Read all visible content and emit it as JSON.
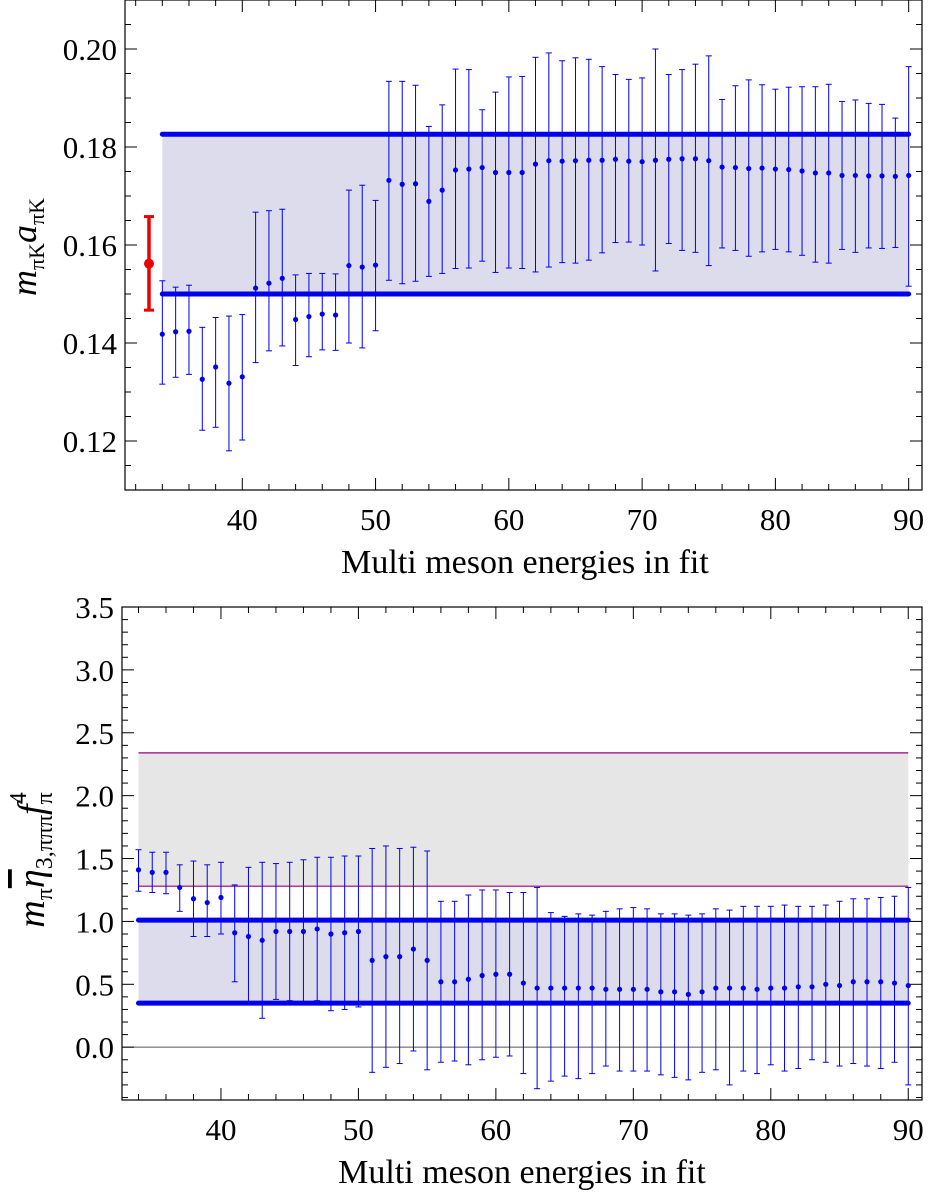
{
  "chart_data": [
    {
      "type": "scatter",
      "xlabel": "Multi meson energies in fit",
      "ylabel": "mπK aπK",
      "ylabel_parts": {
        "m": "m",
        "m_sub": "πK",
        "a": "a",
        "a_sub": "πK"
      },
      "xlim": [
        31.2,
        91
      ],
      "ylim": [
        0.11,
        0.21
      ],
      "x_ticks": [
        40,
        50,
        60,
        70,
        80,
        90
      ],
      "x_ticklabels": [
        "40",
        "50",
        "60",
        "70",
        "80",
        "90"
      ],
      "y_ticks": [
        0.12,
        0.14,
        0.16,
        0.18,
        0.2
      ],
      "y_ticklabels": [
        "0.12",
        "0.14",
        "0.16",
        "0.18",
        "0.20"
      ],
      "colors": {
        "points": "#0000ee",
        "band_fill": "#dcdcec",
        "band_line": "#0000ee",
        "reference": "#ee0000"
      },
      "band": {
        "x": [
          34,
          90
        ],
        "low": 0.15,
        "high": 0.1826
      },
      "reference_point": {
        "x": 33,
        "y": 0.1562,
        "err_low": 0.1467,
        "err_high": 0.1658
      },
      "x": [
        34,
        35,
        36,
        37,
        38,
        39,
        40,
        41,
        42,
        43,
        44,
        45,
        46,
        47,
        48,
        49,
        50,
        51,
        52,
        53,
        54,
        55,
        56,
        57,
        58,
        59,
        60,
        61,
        62,
        63,
        64,
        65,
        66,
        67,
        68,
        69,
        70,
        71,
        72,
        73,
        74,
        75,
        76,
        77,
        78,
        79,
        80,
        81,
        82,
        83,
        84,
        85,
        86,
        87,
        88,
        89,
        90
      ],
      "y": [
        0.1418,
        0.1423,
        0.1424,
        0.1326,
        0.1351,
        0.1318,
        0.1331,
        0.1512,
        0.1522,
        0.1532,
        0.1448,
        0.1454,
        0.1459,
        0.1457,
        0.1558,
        0.1555,
        0.1559,
        0.1732,
        0.1724,
        0.1725,
        0.1689,
        0.1712,
        0.1753,
        0.1755,
        0.1758,
        0.1748,
        0.1748,
        0.1748,
        0.1765,
        0.1772,
        0.1771,
        0.1772,
        0.1773,
        0.1773,
        0.1775,
        0.1771,
        0.177,
        0.1773,
        0.1775,
        0.1776,
        0.1776,
        0.1772,
        0.1759,
        0.1758,
        0.1756,
        0.1757,
        0.1755,
        0.1754,
        0.1751,
        0.1747,
        0.1747,
        0.1742,
        0.1742,
        0.1741,
        0.1741,
        0.174,
        0.1742
      ],
      "err_low": [
        0.1316,
        0.133,
        0.1336,
        0.1222,
        0.1228,
        0.118,
        0.1202,
        0.136,
        0.1384,
        0.1394,
        0.1354,
        0.1372,
        0.1386,
        0.1385,
        0.14,
        0.139,
        0.1425,
        0.1528,
        0.1521,
        0.1526,
        0.1536,
        0.1542,
        0.1552,
        0.1553,
        0.1567,
        0.1544,
        0.1553,
        0.1552,
        0.1545,
        0.1555,
        0.1564,
        0.1563,
        0.1569,
        0.1584,
        0.1605,
        0.1606,
        0.16,
        0.1547,
        0.1603,
        0.1589,
        0.1585,
        0.1558,
        0.1594,
        0.1589,
        0.1577,
        0.1586,
        0.1591,
        0.1586,
        0.1579,
        0.1565,
        0.1563,
        0.1591,
        0.1585,
        0.1594,
        0.1593,
        0.1595,
        0.1516
      ],
      "err_high": [
        0.1527,
        0.1514,
        0.1518,
        0.1432,
        0.1452,
        0.1455,
        0.1458,
        0.1667,
        0.167,
        0.1673,
        0.1539,
        0.1542,
        0.1542,
        0.1541,
        0.1712,
        0.1722,
        0.1691,
        0.1934,
        0.1934,
        0.1926,
        0.1842,
        0.1886,
        0.1959,
        0.1958,
        0.1876,
        0.1912,
        0.1943,
        0.1944,
        0.1983,
        0.1992,
        0.1976,
        0.1982,
        0.1979,
        0.1964,
        0.1948,
        0.1938,
        0.1941,
        0.2,
        0.1948,
        0.1958,
        0.1969,
        0.1986,
        0.1897,
        0.1925,
        0.1937,
        0.1927,
        0.1918,
        0.1922,
        0.1923,
        0.1923,
        0.1928,
        0.1893,
        0.1896,
        0.1889,
        0.1887,
        0.1859,
        0.1964
      ]
    },
    {
      "type": "scatter",
      "xlabel": "Multi meson energies in fit",
      "ylabel": "mπ η̄3,πππ fπ4",
      "ylabel_parts": {
        "m": "m",
        "m_sub": "π",
        "eta": "η",
        "eta_sub": "3,πππ",
        "f": "f",
        "f_sub": "π",
        "f_sup": "4"
      },
      "xlim": [
        32.8,
        91
      ],
      "ylim": [
        -0.42,
        3.5
      ],
      "x_ticks": [
        40,
        50,
        60,
        70,
        80,
        90
      ],
      "x_ticklabels": [
        "40",
        "50",
        "60",
        "70",
        "80",
        "90"
      ],
      "y_ticks": [
        0.0,
        0.5,
        1.0,
        1.5,
        2.0,
        2.5,
        3.0,
        3.5
      ],
      "y_ticklabels": [
        "0.0",
        "0.5",
        "1.0",
        "1.5",
        "2.0",
        "2.5",
        "3.0",
        "3.5"
      ],
      "zero_line": 0,
      "colors": {
        "points": "#0000ee",
        "band_fill": "#dcdcec",
        "band_line": "#0000ee",
        "outer_band_fill": "#e6e6e6",
        "outer_band_line": "#990077",
        "zero_line": "#555555"
      },
      "band": {
        "x": [
          34,
          90
        ],
        "low": 0.35,
        "high": 1.01
      },
      "outer_band": {
        "x": [
          34,
          90
        ],
        "low": 1.28,
        "high": 2.34
      },
      "x": [
        34,
        35,
        36,
        37,
        38,
        39,
        40,
        41,
        42,
        43,
        44,
        45,
        46,
        47,
        48,
        49,
        50,
        51,
        52,
        53,
        54,
        55,
        56,
        57,
        58,
        59,
        60,
        61,
        62,
        63,
        64,
        65,
        66,
        67,
        68,
        69,
        70,
        71,
        72,
        73,
        74,
        75,
        76,
        77,
        78,
        79,
        80,
        81,
        82,
        83,
        84,
        85,
        86,
        87,
        88,
        89,
        90
      ],
      "y": [
        1.41,
        1.39,
        1.39,
        1.27,
        1.18,
        1.15,
        1.19,
        0.91,
        0.88,
        0.85,
        0.92,
        0.92,
        0.92,
        0.94,
        0.9,
        0.91,
        0.92,
        0.69,
        0.72,
        0.72,
        0.78,
        0.69,
        0.52,
        0.52,
        0.54,
        0.57,
        0.58,
        0.58,
        0.51,
        0.47,
        0.47,
        0.47,
        0.47,
        0.47,
        0.46,
        0.46,
        0.46,
        0.46,
        0.44,
        0.44,
        0.42,
        0.44,
        0.47,
        0.47,
        0.47,
        0.46,
        0.47,
        0.47,
        0.48,
        0.48,
        0.5,
        0.49,
        0.52,
        0.52,
        0.52,
        0.51,
        0.49
      ],
      "err_low": [
        1.24,
        1.23,
        1.22,
        1.08,
        0.88,
        0.88,
        0.9,
        0.52,
        0.34,
        0.23,
        0.38,
        0.37,
        0.35,
        0.37,
        0.29,
        0.3,
        0.32,
        -0.2,
        -0.16,
        -0.13,
        -0.03,
        -0.18,
        -0.12,
        -0.11,
        -0.14,
        -0.1,
        -0.08,
        -0.07,
        -0.21,
        -0.33,
        -0.27,
        -0.23,
        -0.25,
        -0.21,
        -0.15,
        -0.19,
        -0.19,
        -0.19,
        -0.22,
        -0.24,
        -0.26,
        -0.2,
        -0.18,
        -0.3,
        -0.19,
        -0.21,
        -0.14,
        -0.19,
        -0.17,
        -0.1,
        -0.12,
        -0.15,
        -0.13,
        -0.15,
        -0.17,
        -0.12,
        -0.3
      ],
      "err_high": [
        1.57,
        1.55,
        1.55,
        1.45,
        1.48,
        1.45,
        1.47,
        1.29,
        1.43,
        1.47,
        1.46,
        1.47,
        1.49,
        1.51,
        1.51,
        1.52,
        1.52,
        1.58,
        1.6,
        1.58,
        1.59,
        1.56,
        1.16,
        1.16,
        1.21,
        1.25,
        1.25,
        1.23,
        1.23,
        1.27,
        1.07,
        1.04,
        1.06,
        1.05,
        1.08,
        1.1,
        1.11,
        1.1,
        1.06,
        1.06,
        1.05,
        1.06,
        1.1,
        1.09,
        1.12,
        1.12,
        1.12,
        1.13,
        1.12,
        1.12,
        1.13,
        1.16,
        1.18,
        1.18,
        1.19,
        1.2,
        1.27
      ]
    }
  ]
}
